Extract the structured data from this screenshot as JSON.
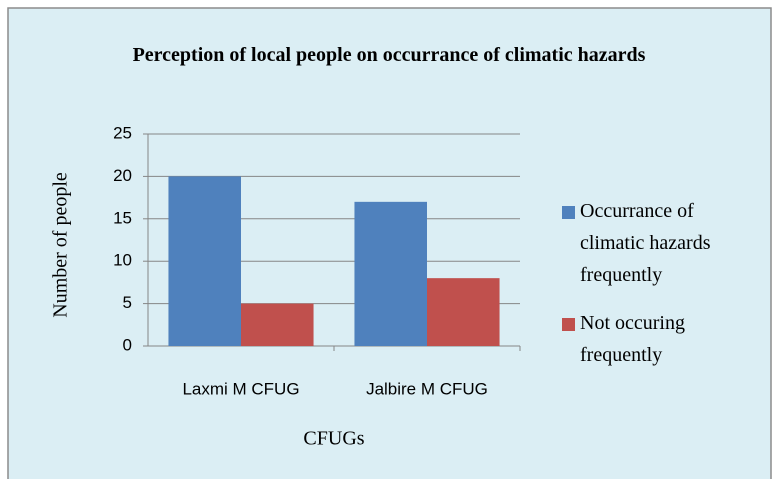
{
  "chart_data": {
    "type": "bar",
    "title": "Perception of local people on occurrance of climatic hazards",
    "y_label": "Number of people",
    "x_label": "CFUGs",
    "categories": [
      "Laxmi M CFUG",
      "Jalbire M CFUG"
    ],
    "series": [
      {
        "name": "Occurrance of climatic hazards frequently",
        "color": "#4f81bd",
        "values": [
          20,
          17
        ]
      },
      {
        "name": "Not occuring frequently",
        "color": "#c0504d",
        "values": [
          5,
          8
        ]
      }
    ],
    "ylim": [
      0,
      25
    ],
    "yticks": [
      0,
      5,
      10,
      15,
      20,
      25
    ],
    "grid": true,
    "legend": "right"
  }
}
